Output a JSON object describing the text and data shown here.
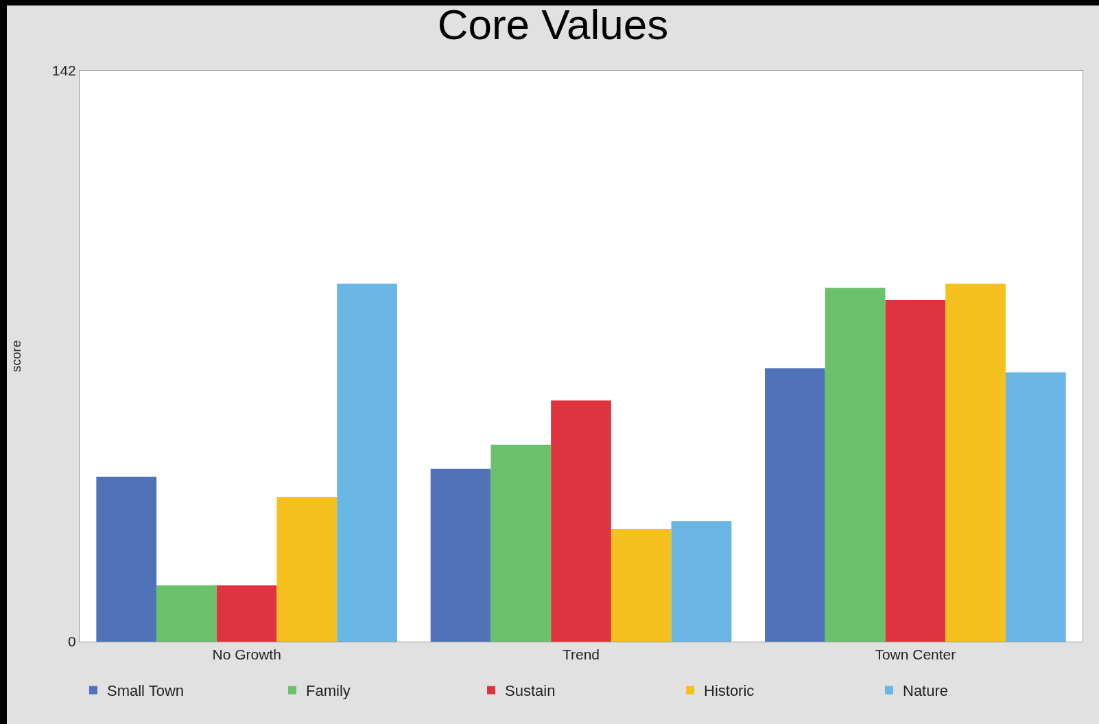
{
  "chart_data": {
    "type": "bar",
    "title": "Core Values",
    "ylabel": "score",
    "categories": [
      "No Growth",
      "Trend",
      "Town Center"
    ],
    "series": [
      {
        "name": "Small Town",
        "color": "#5072b8",
        "values": [
          41,
          43,
          68
        ]
      },
      {
        "name": "Family",
        "color": "#6ac16a",
        "values": [
          14,
          49,
          88
        ]
      },
      {
        "name": "Sustain",
        "color": "#e03340",
        "values": [
          14,
          60,
          85
        ]
      },
      {
        "name": "Historic",
        "color": "#f4c11f",
        "values": [
          36,
          28,
          89
        ]
      },
      {
        "name": "Nature",
        "color": "#69b5e3",
        "values": [
          89,
          30,
          67
        ]
      }
    ],
    "ylim": [
      0,
      142
    ],
    "yticks": [
      0,
      142
    ],
    "legend": "bottom"
  }
}
